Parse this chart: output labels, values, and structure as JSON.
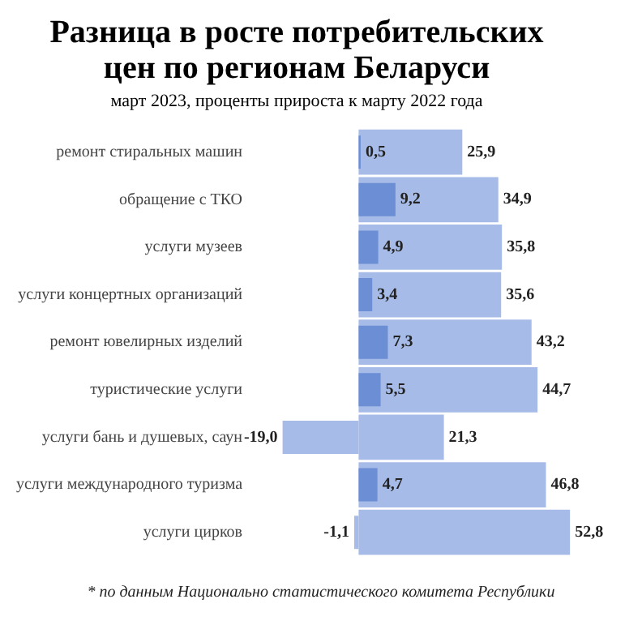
{
  "chart_data": {
    "type": "bar",
    "orientation": "horizontal",
    "title": "Разница в росте потребительских цен по регионам Беларуси",
    "subtitle": "март 2023, проценты прироста к марту 2022 года",
    "categories": [
      "ремонт стиральных машин",
      "обращение с ТКО",
      "услуги музеев",
      "услуги концертных организаций",
      "ремонт ювелирных изделий",
      "туристические услуги",
      "услуги бань и душевых, саун",
      "услуги международного туризма",
      "услуги цирков"
    ],
    "series": [
      {
        "colors": [
          "#6b8ed4",
          "#6b8ed4",
          "#6b8ed4",
          "#6b8ed4",
          "#6b8ed4",
          "#6b8ed4",
          "#a6bbe7",
          "#6b8ed4",
          "#a6bbe7"
        ],
        "values": [
          0.5,
          9.2,
          4.9,
          3.4,
          7.3,
          5.5,
          -19.0,
          4.7,
          -1.1
        ],
        "value_labels": [
          "0,5",
          "9,2",
          "4,9",
          "3,4",
          "7,3",
          "5,5",
          "-19,0",
          "4,7",
          "-1,1"
        ]
      },
      {
        "color": "#a6bbe7",
        "values": [
          25.9,
          34.9,
          35.8,
          35.6,
          43.2,
          44.7,
          21.3,
          46.8,
          52.8
        ],
        "value_labels": [
          "25,9",
          "34,9",
          "35,8",
          "35,6",
          "43,2",
          "44,7",
          "21,3",
          "46,8",
          "52,8"
        ]
      }
    ],
    "legend": false,
    "tick_labels": "y",
    "annotations": [
      "* по данным Национально статистического комитета Республики"
    ]
  }
}
